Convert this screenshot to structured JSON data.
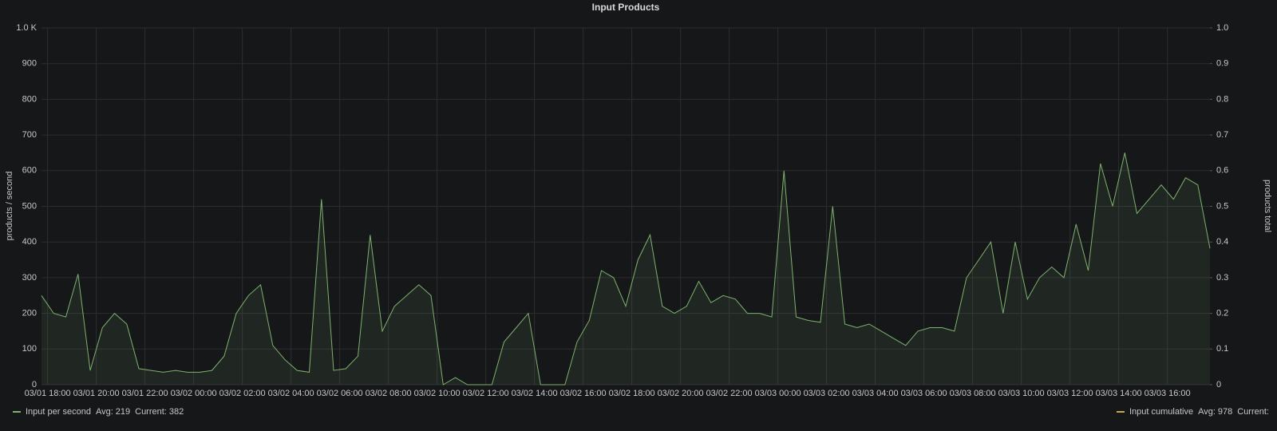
{
  "chart_data": {
    "type": "line",
    "title": "Input Products",
    "ylabel": "products / second",
    "y2label": "products total",
    "x": [
      "03/01 17:45",
      "03/01 18:15",
      "03/01 18:45",
      "03/01 19:15",
      "03/01 19:45",
      "03/01 20:15",
      "03/01 20:45",
      "03/01 21:15",
      "03/01 21:45",
      "03/01 22:15",
      "03/01 22:45",
      "03/01 23:15",
      "03/01 23:45",
      "03/02 00:15",
      "03/02 00:45",
      "03/02 01:15",
      "03/02 01:45",
      "03/02 02:15",
      "03/02 02:45",
      "03/02 03:15",
      "03/02 03:45",
      "03/02 04:15",
      "03/02 04:45",
      "03/02 05:15",
      "03/02 05:45",
      "03/02 06:15",
      "03/02 06:45",
      "03/02 07:15",
      "03/02 07:45",
      "03/02 08:15",
      "03/02 08:45",
      "03/02 09:15",
      "03/02 09:45",
      "03/02 10:15",
      "03/02 10:45",
      "03/02 11:15",
      "03/02 11:45",
      "03/02 12:15",
      "03/02 12:45",
      "03/02 13:15",
      "03/02 13:45",
      "03/02 14:15",
      "03/02 14:45",
      "03/02 15:15",
      "03/02 15:45",
      "03/02 16:15",
      "03/02 16:45",
      "03/02 17:15",
      "03/02 17:45",
      "03/02 18:15",
      "03/02 18:45",
      "03/02 19:15",
      "03/02 19:45",
      "03/02 20:15",
      "03/02 20:45",
      "03/02 21:15",
      "03/02 21:45",
      "03/02 22:15",
      "03/02 22:45",
      "03/02 23:15",
      "03/02 23:45",
      "03/03 00:15",
      "03/03 00:45",
      "03/03 01:15",
      "03/03 01:45",
      "03/03 02:15",
      "03/03 02:45",
      "03/03 03:15",
      "03/03 03:45",
      "03/03 04:15",
      "03/03 04:45",
      "03/03 05:15",
      "03/03 05:45",
      "03/03 06:15",
      "03/03 06:45",
      "03/03 07:15",
      "03/03 07:45",
      "03/03 08:15",
      "03/03 08:45",
      "03/03 09:15",
      "03/03 09:45",
      "03/03 10:15",
      "03/03 10:45",
      "03/03 11:15",
      "03/03 11:45",
      "03/03 12:15",
      "03/03 12:45",
      "03/03 13:15",
      "03/03 13:45",
      "03/03 14:15",
      "03/03 14:45",
      "03/03 15:15",
      "03/03 15:45",
      "03/03 16:15",
      "03/03 16:45",
      "03/03 17:15",
      "03/03 17:45"
    ],
    "series": [
      {
        "name": "Input per second",
        "color": "#7eb26d",
        "values": [
          250,
          200,
          190,
          310,
          40,
          160,
          200,
          170,
          45,
          40,
          35,
          40,
          35,
          35,
          40,
          80,
          200,
          250,
          280,
          110,
          70,
          40,
          35,
          520,
          40,
          45,
          80,
          420,
          150,
          220,
          250,
          280,
          250,
          0,
          20,
          0,
          0,
          0,
          120,
          160,
          200,
          0,
          0,
          0,
          120,
          180,
          320,
          300,
          220,
          350,
          420,
          220,
          200,
          220,
          290,
          230,
          250,
          240,
          200,
          200,
          190,
          600,
          190,
          180,
          175,
          500,
          170,
          160,
          170,
          150,
          130,
          110,
          150,
          160,
          160,
          150,
          300,
          350,
          400,
          200,
          400,
          240,
          300,
          330,
          300,
          450,
          320,
          620,
          500,
          650,
          480,
          520,
          560,
          520,
          580,
          560,
          382
        ]
      }
    ],
    "legend": [
      {
        "name": "Input per second",
        "color": "#7eb26d",
        "stats": [
          {
            "label": "Avg:",
            "value": 219
          },
          {
            "label": "Current:",
            "value": 382
          }
        ]
      },
      {
        "name": "Input cumulative",
        "color": "#c9a84c",
        "stats": [
          {
            "label": "Avg:",
            "value": 978
          },
          {
            "label": "Current:"
          }
        ]
      }
    ],
    "xlim": [
      "03/01 17:45",
      "03/03 17:45"
    ],
    "xticks": [
      "03/01 18:00",
      "03/01 20:00",
      "03/01 22:00",
      "03/02 00:00",
      "03/02 02:00",
      "03/02 04:00",
      "03/02 06:00",
      "03/02 08:00",
      "03/02 10:00",
      "03/02 12:00",
      "03/02 14:00",
      "03/02 16:00",
      "03/02 18:00",
      "03/02 20:00",
      "03/02 22:00",
      "03/03 00:00",
      "03/03 02:00",
      "03/03 04:00",
      "03/03 06:00",
      "03/03 08:00",
      "03/03 10:00",
      "03/03 12:00",
      "03/03 14:00",
      "03/03 16:00"
    ],
    "ylim": [
      0,
      1000
    ],
    "yticks": [
      0,
      100,
      200,
      300,
      400,
      500,
      600,
      700,
      800,
      900,
      {
        "value": 1000,
        "label": "1.0 K"
      }
    ],
    "y2lim": [
      0,
      1
    ],
    "y2ticks": [
      0,
      0.1,
      0.2,
      0.3,
      0.4,
      0.5,
      0.6,
      0.7,
      0.8,
      0.9,
      {
        "value": 1,
        "label": "1.0"
      }
    ],
    "grid": true
  }
}
